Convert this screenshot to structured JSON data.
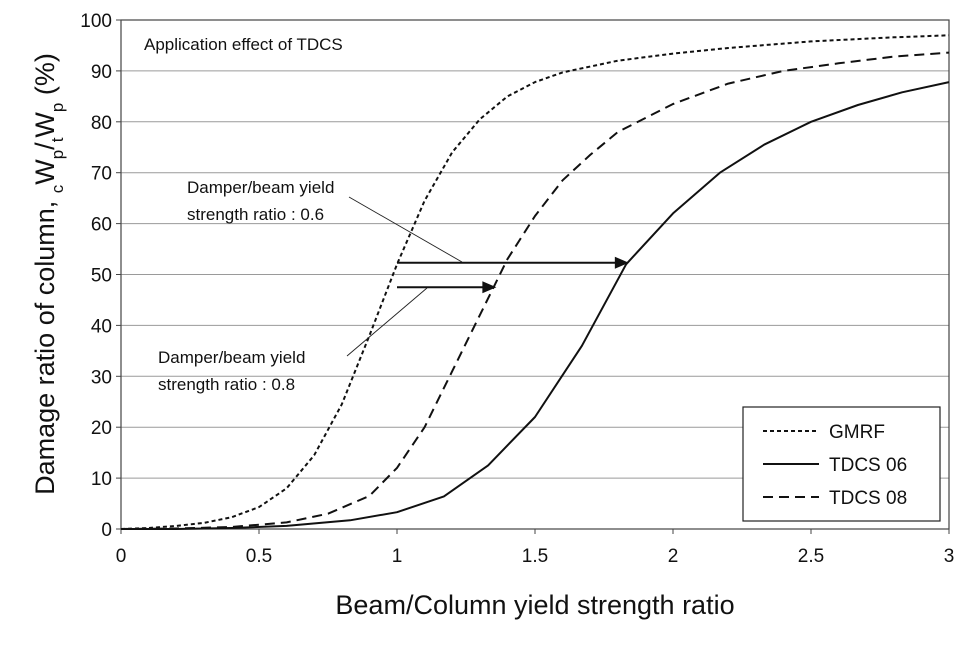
{
  "chart_data": {
    "type": "line",
    "title": "Application effect of TDCS",
    "xlabel": "Beam/Column yield strength ratio",
    "ylabel": "Damage ratio of  column, cWp/tWp (%)",
    "ylabel_parts": {
      "main": "Damage ratio of  column, ",
      "sub1": "c",
      "w1": "W",
      "sub2": "p",
      "slash": "/",
      "sub3": "t",
      "w2": "W",
      "sub4": "p",
      "unit": " (%)"
    },
    "xlim": [
      0,
      3
    ],
    "ylim": [
      0,
      100
    ],
    "x_ticks": [
      0,
      0.5,
      1,
      1.5,
      2,
      2.5,
      3
    ],
    "x_tick_labels": [
      "0",
      "0.5",
      "1",
      "1.5",
      "2",
      "2.5",
      "3"
    ],
    "y_ticks": [
      0,
      10,
      20,
      30,
      40,
      50,
      60,
      70,
      80,
      90,
      100
    ],
    "y_tick_labels": [
      "0",
      "10",
      "20",
      "30",
      "40",
      "50",
      "60",
      "70",
      "80",
      "90",
      "100"
    ],
    "grid": "horizontal",
    "legend_position": "bottom-right",
    "series": [
      {
        "name": "GMRF",
        "style": "short-dash",
        "points": [
          [
            0,
            0
          ],
          [
            0.1,
            0.2
          ],
          [
            0.2,
            0.6
          ],
          [
            0.3,
            1.2
          ],
          [
            0.4,
            2.3
          ],
          [
            0.5,
            4.3
          ],
          [
            0.6,
            8
          ],
          [
            0.7,
            14.5
          ],
          [
            0.8,
            24.5
          ],
          [
            0.9,
            38
          ],
          [
            1.0,
            52
          ],
          [
            1.1,
            64.5
          ],
          [
            1.2,
            74
          ],
          [
            1.3,
            80.5
          ],
          [
            1.4,
            85
          ],
          [
            1.5,
            87.8
          ],
          [
            1.6,
            89.7
          ],
          [
            1.8,
            92
          ],
          [
            2.0,
            93.4
          ],
          [
            2.2,
            94.5
          ],
          [
            2.5,
            95.8
          ],
          [
            2.8,
            96.6
          ],
          [
            3.0,
            97
          ]
        ]
      },
      {
        "name": "TDCS 06",
        "style": "solid",
        "points": [
          [
            0,
            0
          ],
          [
            0.2,
            0
          ],
          [
            0.4,
            0.2
          ],
          [
            0.6,
            0.6
          ],
          [
            0.83,
            1.7
          ],
          [
            1.0,
            3.3
          ],
          [
            1.17,
            6.4
          ],
          [
            1.33,
            12.5
          ],
          [
            1.5,
            22
          ],
          [
            1.67,
            36
          ],
          [
            1.83,
            52
          ],
          [
            2.0,
            62
          ],
          [
            2.17,
            70
          ],
          [
            2.33,
            75.5
          ],
          [
            2.5,
            80
          ],
          [
            2.67,
            83.3
          ],
          [
            2.83,
            85.8
          ],
          [
            3.0,
            87.8
          ]
        ]
      },
      {
        "name": "TDCS 08",
        "style": "long-dash",
        "points": [
          [
            0,
            0
          ],
          [
            0.2,
            0.1
          ],
          [
            0.4,
            0.4
          ],
          [
            0.6,
            1.3
          ],
          [
            0.75,
            3
          ],
          [
            0.9,
            6.5
          ],
          [
            1.0,
            12
          ],
          [
            1.1,
            20
          ],
          [
            1.2,
            31
          ],
          [
            1.3,
            42
          ],
          [
            1.4,
            53
          ],
          [
            1.5,
            61.5
          ],
          [
            1.6,
            68.5
          ],
          [
            1.7,
            73.5
          ],
          [
            1.8,
            78
          ],
          [
            2.0,
            83.5
          ],
          [
            2.2,
            87.5
          ],
          [
            2.4,
            90
          ],
          [
            2.6,
            91.5
          ],
          [
            2.8,
            92.8
          ],
          [
            3.0,
            93.6
          ]
        ]
      }
    ],
    "annotations": [
      {
        "lines": [
          "Damper/beam yield",
          "strength ratio : 0.6"
        ],
        "arrow_from": [
          1.0,
          52.3
        ],
        "arrow_to": [
          1.84,
          52.3
        ]
      },
      {
        "lines": [
          "Damper/beam yield",
          "strength ratio : 0.8"
        ],
        "arrow_from": [
          1.0,
          47.5
        ],
        "arrow_to": [
          1.36,
          47.5
        ]
      }
    ]
  }
}
